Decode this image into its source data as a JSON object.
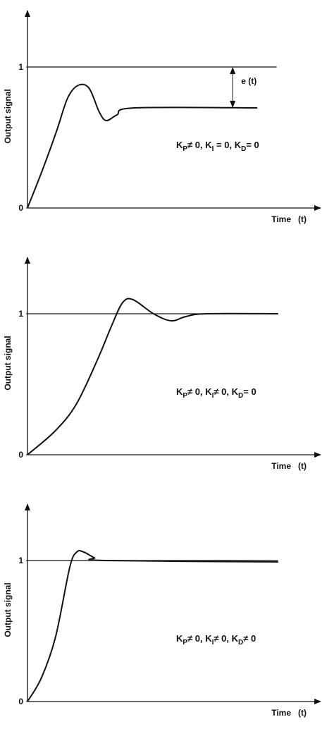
{
  "chart_data": [
    {
      "type": "line",
      "y_label": "Output signal",
      "x_label": "Time   (t)",
      "xlim": [
        0,
        10
      ],
      "ylim": [
        0,
        1.4
      ],
      "yticks": [
        0,
        1
      ],
      "series": [
        {
          "color": "#111111",
          "x": [
            0,
            0.53,
            1.0,
            1.37,
            1.73,
            2.1,
            2.45,
            2.69,
            3.05,
            3.65,
            7.84
          ],
          "values": [
            0,
            0.28,
            0.55,
            0.78,
            0.87,
            0.85,
            0.68,
            0.62,
            0.66,
            0.71,
            0.71
          ]
        },
        {
          "color": "#111111",
          "x": [
            0,
            8.5
          ],
          "values": [
            1,
            1
          ]
        }
      ],
      "error_label": "e (t)",
      "error_x": 7.0,
      "label_parts": [
        "K",
        "P",
        "≠ 0, K",
        "I",
        " = 0, K",
        "D",
        "= 0"
      ]
    },
    {
      "type": "line",
      "y_label": "Output signal",
      "x_label": "Time   (t)",
      "xlim": [
        0,
        10
      ],
      "ylim": [
        0,
        1.4
      ],
      "yticks": [
        0,
        1
      ],
      "series": [
        {
          "color": "#111111",
          "x": [
            0,
            0.95,
            1.67,
            2.4,
            2.88,
            3.25,
            3.6,
            4.3,
            4.9,
            5.4,
            6.1,
            8.55
          ],
          "values": [
            0,
            0.17,
            0.36,
            0.68,
            0.92,
            1.08,
            1.1,
            1.0,
            0.95,
            0.98,
            1.0,
            1.0
          ]
        },
        {
          "color": "#111111",
          "x": [
            0,
            8.55
          ],
          "values": [
            1,
            1
          ]
        }
      ],
      "label_parts": [
        "K",
        "P",
        "≠ 0, K",
        "I",
        "≠ 0, K",
        "D",
        "= 0"
      ]
    },
    {
      "type": "line",
      "y_label": "Output signal",
      "x_label": "Time   (t)",
      "xlim": [
        0,
        10
      ],
      "ylim": [
        0,
        1.4
      ],
      "yticks": [
        0,
        1
      ],
      "series": [
        {
          "color": "#111111",
          "x": [
            0,
            0.48,
            0.96,
            1.44,
            1.68,
            1.92,
            2.28,
            2.64,
            8.55
          ],
          "values": [
            0,
            0.17,
            0.46,
            0.95,
            1.06,
            1.06,
            1.02,
            1.0,
            0.99
          ]
        },
        {
          "color": "#111111",
          "x": [
            0,
            8.55
          ],
          "values": [
            1,
            1
          ]
        }
      ],
      "label_parts": [
        "K",
        "P",
        "≠ 0, K",
        "I",
        "≠ 0, K",
        "D",
        "≠ 0"
      ]
    }
  ]
}
